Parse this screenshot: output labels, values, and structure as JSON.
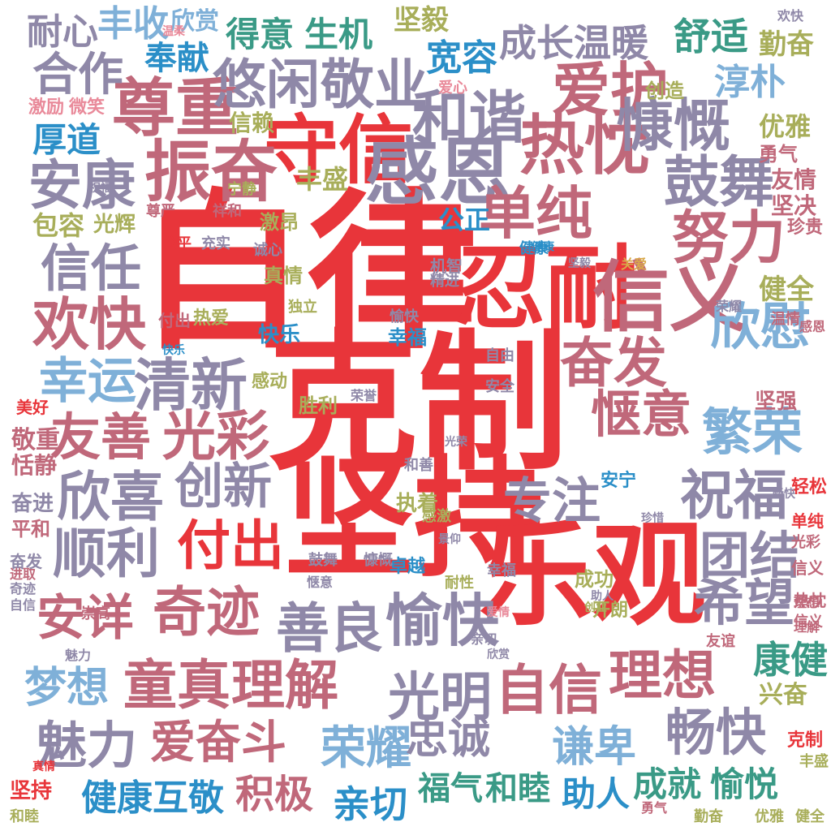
{
  "palette": {
    "red": "#e8353a",
    "slate": "#8f88a8",
    "rose": "#c0687a",
    "sky": "#7fb0d8",
    "blue": "#2b8fc8",
    "teal": "#3a9a86",
    "olive": "#a8ae5a",
    "gold": "#d9a94a",
    "pink": "#e98a9a",
    "green": "#4aa86a",
    "purple": "#a98bb8"
  },
  "words": {
    "w_zilu": "自律",
    "w_kezhi": "克制",
    "w_jianchi": "坚持",
    "w_leguan": "乐观",
    "w_rennai": "忍耐",
    "w_xinyi": "信义",
    "w_shouxin": "守信",
    "w_zunzhong": "尊重",
    "w_zhenfen": "振奋",
    "w_ganen": "感恩",
    "w_rechen": "热忱",
    "w_hexie": "和谐",
    "w_aihu": "爱护",
    "w_kangkai": "慷慨",
    "w_guwu": "鼓舞",
    "w_nuli": "努力",
    "w_danchun": "单纯",
    "w_ankang": "安康",
    "w_xinren": "信任",
    "w_huankuai": "欢快",
    "w_xingyun": "幸运",
    "w_qingxin": "清新",
    "w_youshan": "友善",
    "w_guangcai": "光彩",
    "w_xinxi": "欣喜",
    "w_chuangxin": "创新",
    "w_shunli": "顺利",
    "w_anxiang": "安详",
    "w_qiji": "奇迹",
    "w_fuchu": "付出",
    "w_zhuanzhu": "专注",
    "w_fenfa": "奋发",
    "w_qieyi": "惬意",
    "w_xinwei": "欣慰",
    "w_fanrong": "繁荣",
    "w_zhufu": "祝福",
    "w_tuanjie": "团结",
    "w_xiwang": "希望",
    "w_shanliang": "善良",
    "w_yukuai": "愉快",
    "w_tongzhen": "童真",
    "w_lijie": "理解",
    "w_guangming": "光明",
    "w_zixin": "自信",
    "w_lixiang": "理想",
    "w_kangjian": "康健",
    "w_mengxiang": "梦想",
    "w_meili": "魅力",
    "w_aifendou": "爱奋斗",
    "w_rongyao": "荣耀",
    "w_zhongcheng": "忠诚",
    "w_qianbei": "谦卑",
    "w_changkuai": "畅快",
    "w_jiankanghujing": "健康互敬",
    "w_jiji": "积极",
    "w_qinqie": "亲切",
    "w_fuqi": "福气",
    "w_hemu": "和睦",
    "w_zhuren": "助人",
    "w_chengjiu": "成就",
    "w_yuyue": "愉悦",
    "w_youxian": "悠闲",
    "w_jingye": "敬业",
    "w_hezuo": "合作",
    "w_naixin": "耐心",
    "w_fengshou": "丰收",
    "w_xinshang": "欣赏",
    "w_jianyi": "坚毅",
    "w_deyi": "得意",
    "w_shengji": "生机",
    "w_chengzhang": "成长温暖",
    "w_shushi": "舒适",
    "w_qinfen": "勤奋",
    "w_fengxian": "奉献",
    "w_kuanrong": "宽容",
    "w_fupu": "淳朴",
    "w_houdao": "厚道",
    "w_youya": "优雅",
    "w_gongzheng": "公正",
    "w_baorong": "包容",
    "w_guanghui": "光辉",
    "w_fengsheng": "丰盛",
    "w_xinlai": "信赖",
    "w_youqing": "友情",
    "w_jianjue": "坚决",
    "w_yongqi": "勇气",
    "w_jiji2": "激励",
    "w_weixiao": "微笑",
    "w_chuangzao": "创造",
    "w_jianquan": "健全",
    "w_jiankang": "健康",
    "w_xingfu": "幸福",
    "w_kuaile": "快乐",
    "w_zhenqing": "真情",
    "w_jiqing": "激昂",
    "w_jingzhong": "敬重",
    "w_tianjing": "恬静",
    "w_fenjin": "奋进",
    "w_pingho": "平和",
    "w_shengli": "胜利",
    "w_zhixing": "执着",
    "w_chengong": "成功",
    "w_kailang": "开朗",
    "w_xingfen": "兴奋",
    "w_kezhi2": "克制",
    "w_jianchi2": "坚持",
    "w_zhuoyue": "卓越",
    "w_naixing": "耐性",
    "w_anning": "安宁",
    "w_qinggan": "轻松",
    "w_changxiang": "珍贵",
    "w_ganjin": "感动",
    "w_jianqiang": "坚强",
    "w_meihao": "美好",
    "w_fenfa2": "奋发",
    "w_ziyou": "自由",
    "w_anquan": "安全",
    "w_shengsheng": "兴奋",
    "w_gulian": "鼓舞",
    "w_kangkai2": "慷慨",
    "w_zhengyi": "信义",
    "w_qiangjian": "勤奋",
    "w_youya2": "优雅",
    "w_jianquan2": "健全",
    "w_yongqi2": "勇气",
    "w_hemu2": "和睦",
    "w_fengsheng2": "丰盛",
    "w_ningjing": "宁静",
    "w_ganjie": "感激",
    "w_danchun2": "单纯",
    "w_guangcai2": "光彩",
    "w_rechen2": "热忱",
    "w_xinyi2": "信义",
    "w_lixiang2": "理想",
    "w_lijie2": "理解",
    "w_aixin": "爱心",
    "w_zunyan": "尊严",
    "w_xiangchu": "祥和",
    "w_chongshi": "充实",
    "w_gongping": "公平",
    "w_fuchu2": "付出",
    "w_reai": "热爱",
    "w_chengxin": "诚心",
    "w_duli": "独立",
    "w_kuaile2": "快乐",
    "w_qiqi": "奇迹",
    "w_zixin2": "自信",
    "w_wenqing": "温情",
    "w_ganen2": "感恩",
    "w_rongyao2": "荣耀",
    "w_rongyu": "荣誉",
    "w_jijie": "机智",
    "w_jingjin": "精进",
    "w_aiqing": "爱情",
    "w_guanai": "关爱",
    "w_qinqie2": "亲切",
    "w_zhenxi": "珍惜",
    "w_chuangye": "创业",
    "w_youyi": "友谊",
    "w_chongbai": "崇高",
    "w_jinqu": "进取",
    "w_meili2": "魅力",
    "w_zhuren2": "助人",
    "w_hexie2": "和善",
    "w_guangming2": "光荣",
    "w_xinshang2": "欣赏",
    "w_jianyi2": "坚毅",
    "w_xingfu2": "幸福",
    "w_wenrou": "温柔",
    "w_changkuai2": "畅快",
    "w_qieyi2": "惬意",
    "w_huankuai2": "欢快",
    "w_yukuai2": "愉快",
    "w_jiankang2": "健康",
    "w_zhenqing2": "真情",
    "w_jinggui": "景仰",
    "w_zhufu2": "祝福"
  }
}
